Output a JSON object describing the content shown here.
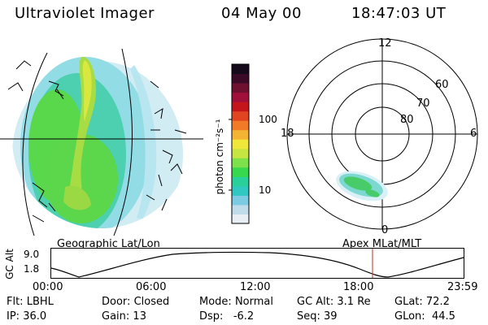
{
  "header": {
    "instrument": "Ultraviolet Imager",
    "date": "04 May 00",
    "time": "18:47:03 UT"
  },
  "geographic_panel": {
    "label": "Geographic Lat/Lon"
  },
  "colorbar": {
    "unit_label": "photon cm⁻²s⁻¹",
    "ticks": [
      "100",
      "10"
    ],
    "colors": [
      "#e8eef4",
      "#c0dceb",
      "#7ccbe3",
      "#30c8c0",
      "#2ad09a",
      "#38d84e",
      "#7ee04a",
      "#c6e442",
      "#f1e63a",
      "#f2b432",
      "#f07a28",
      "#e04420",
      "#c4141c",
      "#a0103a",
      "#701030",
      "#3a0a28",
      "#140a1c"
    ]
  },
  "polar_panel": {
    "label": "Apex MLat/MLT",
    "mlt_labels": {
      "top": "12",
      "left": "18",
      "right": "6",
      "bottom": "0"
    },
    "lat_labels": [
      "60",
      "70",
      "80"
    ]
  },
  "altitude_plot": {
    "ylabel": "GC Alt",
    "yticks": [
      "9.0",
      "1.8"
    ],
    "xticks": [
      "00:00",
      "06:00",
      "12:00",
      "18:00",
      "23:59"
    ],
    "current_time_marker_color": "#c03020"
  },
  "status": {
    "filter": {
      "label": "Flt:",
      "value": "LBHL"
    },
    "ip": {
      "label": "IP:",
      "value": "36.0"
    },
    "door": {
      "label": "Door:",
      "value": "Closed"
    },
    "gain": {
      "label": "Gain:",
      "value": "13"
    },
    "mode": {
      "label": "Mode:",
      "value": "Normal"
    },
    "dsp": {
      "label": "Dsp:",
      "value": "-6.2"
    },
    "gc_alt": {
      "label": "GC Alt:",
      "value": "3.1 Re"
    },
    "seq": {
      "label": "Seq:",
      "value": "39"
    },
    "glat": {
      "label": "GLat:",
      "value": "72.2"
    },
    "glon": {
      "label": "GLon:",
      "value": "44.5"
    }
  }
}
